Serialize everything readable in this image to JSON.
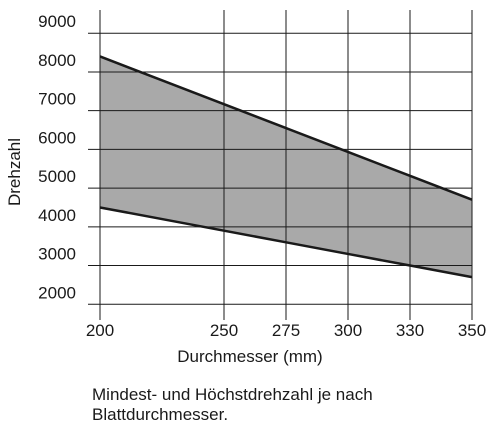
{
  "chart_data": {
    "type": "range-line",
    "categories": [
      "200",
      null,
      "250",
      "275",
      "300",
      "330",
      "350"
    ],
    "series": [
      {
        "color": "#1a1a1a",
        "values": [
          8400,
          7783,
          7167,
          6550,
          5933,
          5317,
          4700
        ]
      },
      {
        "color": "#1a1a1a",
        "values": [
          4500,
          4200,
          3900,
          3600,
          3300,
          3000,
          2700
        ]
      }
    ],
    "fill_color": "#a9a9a9",
    "ylim": [
      1800,
      9600
    ],
    "yticks": [
      2000,
      3000,
      4000,
      5000,
      6000,
      7000,
      8000,
      9000
    ],
    "grid": true,
    "x_label": "Durchmesser (mm)",
    "y_label": "Drehzahl",
    "caption": "Mindest- und Höchstdrehzahl je nach Blattdurchmesser."
  }
}
